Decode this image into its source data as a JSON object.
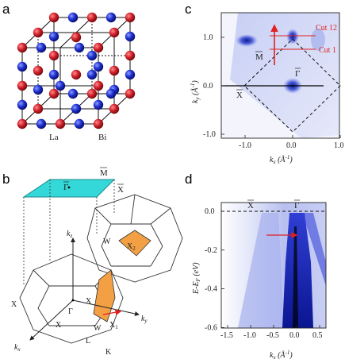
{
  "panels": {
    "a": "a",
    "b": "b",
    "c": "c",
    "d": "d"
  },
  "panel_a": {
    "label_la": "La",
    "label_bi": "Bi",
    "colors": {
      "la": "#d0202a",
      "bi": "#1e2fd0"
    }
  },
  "panel_b": {
    "labels": {
      "gamma_bar": "Γ",
      "m_bar": "M",
      "x_bar": "X",
      "kz": "k",
      "kz_sub": "z",
      "w_top": "W",
      "x2": "X",
      "x2_sub": "2",
      "x_mid": "X",
      "x_left": "X",
      "gamma": "Γ",
      "x_low": "X",
      "w_low": "W",
      "x1": "X",
      "x1_sub": "1",
      "l": "L",
      "k": "K",
      "ky": "k",
      "ky_sub": "y",
      "kx": "k",
      "kx_sub": "x"
    },
    "colors": {
      "surface": "#35d8d8",
      "face": "#f3a044"
    }
  },
  "panel_c": {
    "ylabel": "k_y (Å⁻¹)",
    "xlabel": "k_x (Å⁻¹)",
    "yticks": [
      "1.0",
      "0.0",
      "-1.0"
    ],
    "xticks": [
      "-1.0",
      "0.0",
      "1.0"
    ],
    "cut12": "Cut 12",
    "cut1": "Cut 1",
    "m_bar": "M",
    "gamma_bar": "Γ",
    "x_bar": "X"
  },
  "panel_d": {
    "ylabel": "E-E_F (eV)",
    "xlabel": "k_x (Å⁻¹)",
    "yticks": [
      "0.0",
      "-0.2",
      "-0.4",
      "-0.6"
    ],
    "xticks": [
      "-1.5",
      "-1.0",
      "-0.5",
      "0.0",
      "0.5"
    ],
    "x_bar": "X",
    "gamma_bar": "Γ"
  },
  "chart_data": [
    {
      "type": "heatmap",
      "title": "",
      "xlabel": "k_x (Å⁻¹)",
      "ylabel": "k_y (Å⁻¹)",
      "xlim": [
        -1.4,
        1.05
      ],
      "ylim": [
        -1.05,
        1.5
      ],
      "features": [
        {
          "label": "Γ",
          "x": 0.0,
          "y": 0.0
        },
        {
          "label": "M",
          "x": -0.9,
          "y": 0.9
        },
        {
          "label": "X",
          "x": -1.0,
          "y": 0.0
        }
      ]
    },
    {
      "type": "heatmap",
      "title": "",
      "xlabel": "k_x (Å⁻¹)",
      "ylabel": "E-E_F (eV)",
      "xlim": [
        -1.6,
        0.8
      ],
      "ylim": [
        -0.6,
        0.08
      ],
      "features": [
        {
          "label": "X",
          "x": -1.0,
          "y": 0.0
        },
        {
          "label": "Γ",
          "x": 0.0,
          "y": 0.0
        }
      ]
    }
  ]
}
